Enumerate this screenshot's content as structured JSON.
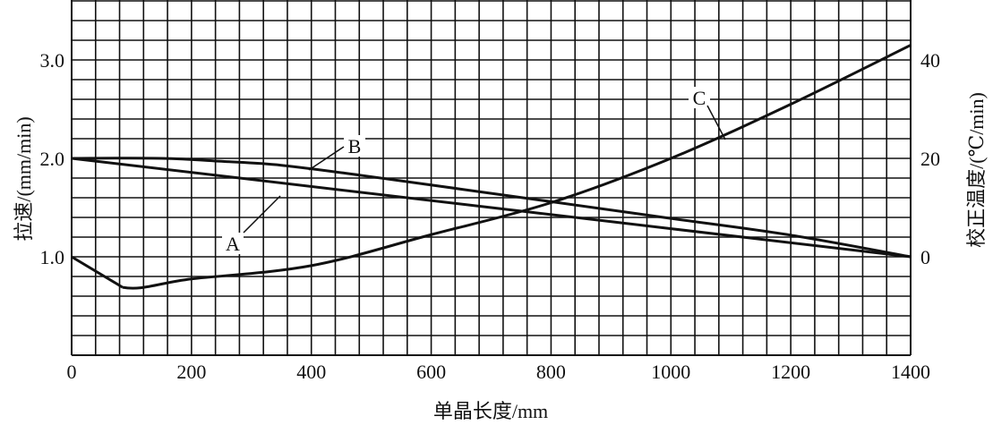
{
  "chart_data": {
    "type": "line",
    "title": "",
    "xlabel": "单晶长度/mm",
    "ylabel": "拉速/(mm/min)",
    "ylabel_right": "校正温度/(℃/min)",
    "xlim": [
      0,
      1400
    ],
    "ylim": [
      0,
      3.6
    ],
    "ylim_right": [
      -20,
      52
    ],
    "grid": true,
    "x_ticks": [
      "0",
      "200",
      "400",
      "600",
      "800",
      "1000",
      "1200",
      "1400"
    ],
    "y_ticks": [
      "1.0",
      "2.0",
      "3.0"
    ],
    "y_ticks_right": [
      "0",
      "20",
      "40"
    ],
    "series": [
      {
        "name": "A",
        "axis": "left",
        "x": [
          0,
          1400
        ],
        "y": [
          2.0,
          1.0
        ]
      },
      {
        "name": "B",
        "axis": "left",
        "x": [
          0,
          150,
          250,
          350,
          480,
          800,
          1000,
          1200,
          1400
        ],
        "y": [
          2.0,
          2.0,
          1.97,
          1.93,
          1.83,
          1.56,
          1.39,
          1.22,
          1.0
        ]
      },
      {
        "name": "C",
        "axis": "right",
        "x": [
          0,
          85,
          200,
          400,
          600,
          800,
          1000,
          1200,
          1400
        ],
        "y": [
          0,
          -6.2,
          -4.5,
          -1.8,
          4.5,
          11,
          20,
          31,
          43
        ]
      }
    ],
    "curve_labels": [
      "A",
      "B",
      "C"
    ],
    "line_color": "#111111"
  }
}
